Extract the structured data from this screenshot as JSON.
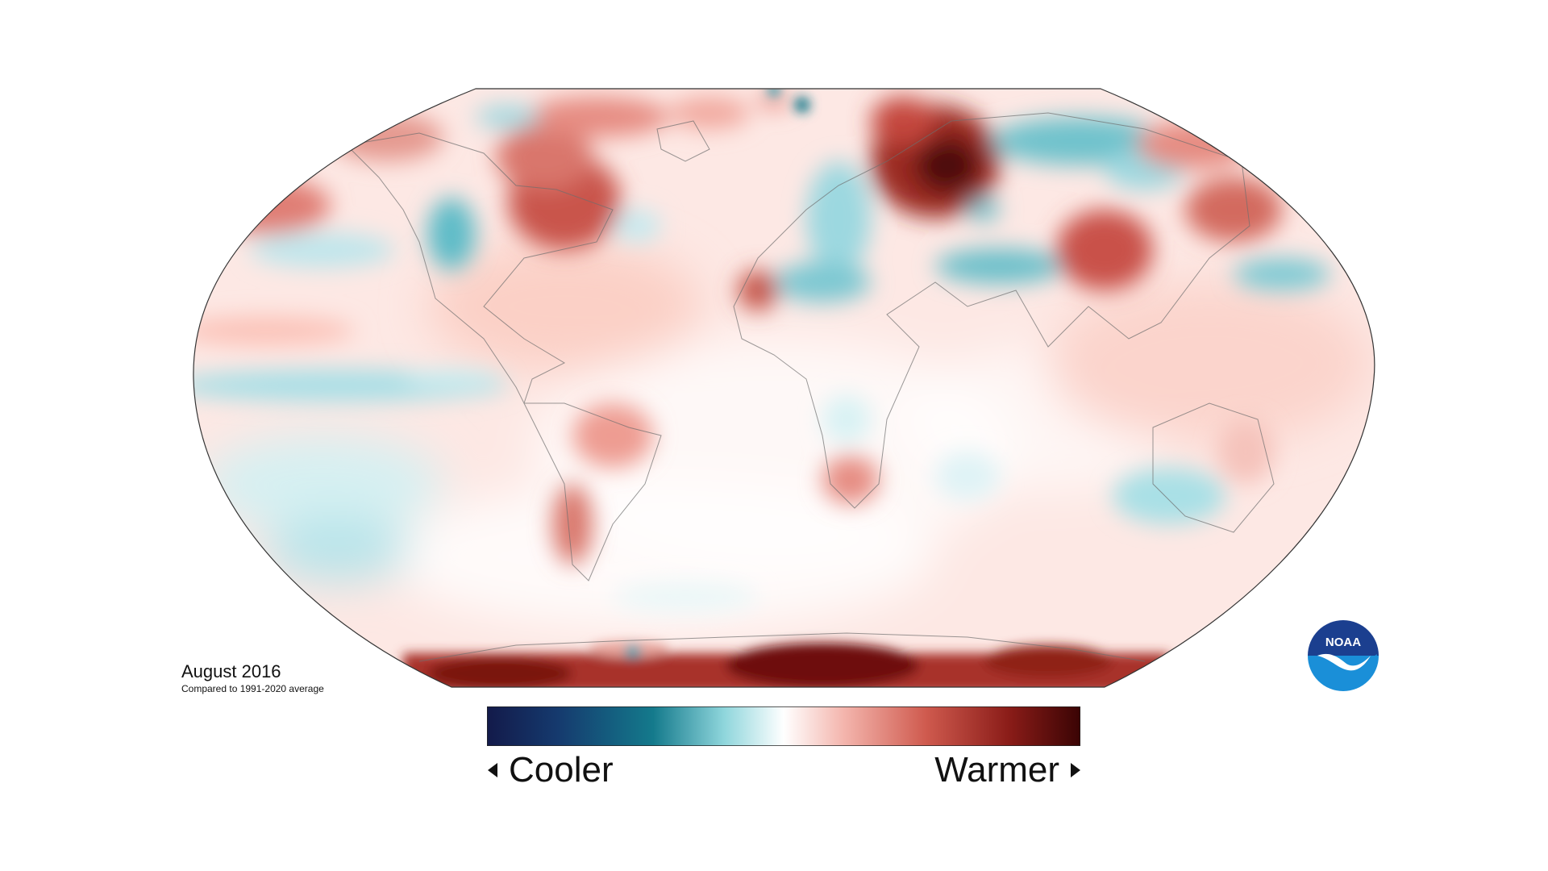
{
  "map": {
    "title": "August 2016",
    "subtitle": "Compared to 1991-2020 average",
    "projection": "Robinson",
    "variable": "temperature anomaly",
    "colors": {
      "cold_extreme": "#13245e",
      "cold": "#1a7e8f",
      "cool": "#a8e0e8",
      "neutral": "#ffffff",
      "warm": "#f2b0a8",
      "hot": "#c0443a",
      "hot_extreme": "#4a0505"
    }
  },
  "legend": {
    "cool_label": "Cooler",
    "warm_label": "Warmer",
    "left_arrow": "triangle-left-icon",
    "right_arrow": "triangle-right-icon"
  },
  "logo": {
    "text": "NOAA",
    "icon": "noaa-logo-icon",
    "colors": {
      "top": "#1b3f8f",
      "bottom": "#1a8fd8",
      "bird": "#ffffff"
    }
  }
}
